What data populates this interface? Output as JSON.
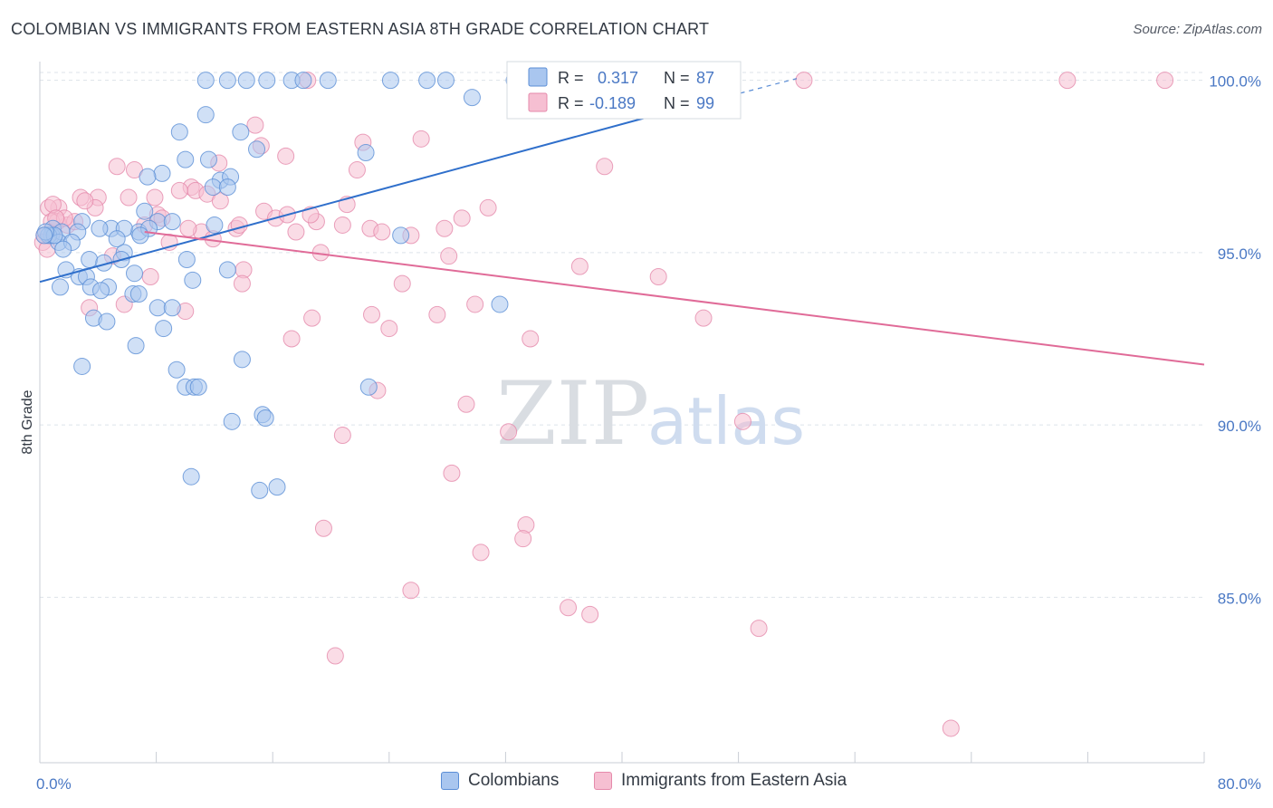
{
  "header": {
    "title": "COLOMBIAN VS IMMIGRANTS FROM EASTERN ASIA 8TH GRADE CORRELATION CHART",
    "source": "Source: ZipAtlas.com"
  },
  "watermark": {
    "zip": "ZIP",
    "atlas": "atlas"
  },
  "colors": {
    "blue_fill": "#a9c6ef",
    "blue_stroke": "#5b8ed6",
    "blue_line": "#2f6fcb",
    "pink_fill": "#f6bfd2",
    "pink_stroke": "#e58aab",
    "pink_line": "#e06b98",
    "grid": "#dde3ea",
    "tick_text": "#4a78c4"
  },
  "legend": {
    "r_label": "R =",
    "n_label": "N =",
    "entries": [
      {
        "r": "0.317",
        "n": "87"
      },
      {
        "r": "-0.189",
        "n": "99"
      }
    ]
  },
  "bottom_legend": [
    "Colombians",
    "Immigrants from Eastern Asia"
  ],
  "chart_data": {
    "type": "scatter",
    "title": "COLOMBIAN VS IMMIGRANTS FROM EASTERN ASIA 8TH GRADE CORRELATION CHART",
    "xlabel": "",
    "ylabel": "8th Grade",
    "xlim": [
      0,
      80
    ],
    "ylim": [
      80.2,
      100.7
    ],
    "x_tick_labels": [
      "0.0%",
      "80.0%"
    ],
    "y_ticks": [
      85,
      90,
      95,
      100
    ],
    "y_tick_labels": [
      "85.0%",
      "90.0%",
      "95.0%",
      "100.0%"
    ],
    "grid": "horizontal dashed",
    "legend_placement": "top-center",
    "series": [
      {
        "name": "Colombians",
        "r": 0.317,
        "n": 87,
        "trend": {
          "x1": 0,
          "y1": 94.15,
          "x2": 41.5,
          "y2": 98.9,
          "dashed_to_x": 52,
          "dashed_to_y": 100.05
        },
        "points": [
          [
            11.4,
            100
          ],
          [
            12.9,
            100
          ],
          [
            14.2,
            100
          ],
          [
            15.6,
            100
          ],
          [
            17.3,
            100
          ],
          [
            18.1,
            100
          ],
          [
            19.8,
            100
          ],
          [
            24.1,
            100
          ],
          [
            26.6,
            100
          ],
          [
            27.9,
            100
          ],
          [
            29.7,
            99.5
          ],
          [
            32.6,
            100
          ],
          [
            33.5,
            100
          ],
          [
            11.4,
            99
          ],
          [
            9.6,
            98.5
          ],
          [
            13.8,
            98.5
          ],
          [
            14.9,
            98
          ],
          [
            22.4,
            97.9
          ],
          [
            10,
            97.7
          ],
          [
            11.6,
            97.7
          ],
          [
            8.4,
            97.3
          ],
          [
            7.4,
            97.2
          ],
          [
            12.4,
            97.1
          ],
          [
            13.1,
            97.2
          ],
          [
            11.9,
            96.9
          ],
          [
            12.9,
            96.9
          ],
          [
            7.2,
            96.2
          ],
          [
            8.1,
            95.9
          ],
          [
            9.1,
            95.9
          ],
          [
            12,
            95.8
          ],
          [
            6.8,
            95.6
          ],
          [
            7.5,
            95.7
          ],
          [
            4.9,
            95.7
          ],
          [
            5.8,
            95.7
          ],
          [
            2.9,
            95.9
          ],
          [
            0.9,
            95.7
          ],
          [
            0.8,
            95.5
          ],
          [
            1.5,
            95.6
          ],
          [
            2.6,
            95.6
          ],
          [
            4.1,
            95.7
          ],
          [
            0.6,
            95.5
          ],
          [
            1.3,
            95.3
          ],
          [
            6.9,
            95.5
          ],
          [
            5.3,
            95.4
          ],
          [
            2.2,
            95.3
          ],
          [
            1.6,
            95.1
          ],
          [
            5.8,
            95
          ],
          [
            3.4,
            94.8
          ],
          [
            4.4,
            94.7
          ],
          [
            5.6,
            94.8
          ],
          [
            10.1,
            94.8
          ],
          [
            1.8,
            94.5
          ],
          [
            2.7,
            94.3
          ],
          [
            3.2,
            94.3
          ],
          [
            6.5,
            94.4
          ],
          [
            12.9,
            94.5
          ],
          [
            10.5,
            94.2
          ],
          [
            1.4,
            94
          ],
          [
            3.5,
            94
          ],
          [
            4.7,
            94
          ],
          [
            4.2,
            93.9
          ],
          [
            6.4,
            93.8
          ],
          [
            6.8,
            93.8
          ],
          [
            8.1,
            93.4
          ],
          [
            9.1,
            93.4
          ],
          [
            3.7,
            93.1
          ],
          [
            4.6,
            93
          ],
          [
            8.5,
            92.8
          ],
          [
            6.6,
            92.3
          ],
          [
            13.9,
            91.9
          ],
          [
            2.9,
            91.7
          ],
          [
            9.4,
            91.6
          ],
          [
            10,
            91.1
          ],
          [
            10.6,
            91.1
          ],
          [
            10.9,
            91.1
          ],
          [
            22.6,
            91.1
          ],
          [
            15.3,
            90.3
          ],
          [
            15.5,
            90.2
          ],
          [
            13.2,
            90.1
          ],
          [
            10.4,
            88.5
          ],
          [
            15.1,
            88.1
          ],
          [
            16.3,
            88.2
          ],
          [
            31.6,
            93.5
          ],
          [
            24.8,
            95.5
          ],
          [
            1,
            95.5
          ],
          [
            0.4,
            95.6
          ],
          [
            0.3,
            95.5
          ]
        ]
      },
      {
        "name": "Immigrants from Eastern Asia",
        "r": -0.189,
        "n": 99,
        "trend": {
          "x1": 7.2,
          "y1": 95.6,
          "x2": 80,
          "y2": 91.75
        },
        "points": [
          [
            18.4,
            100
          ],
          [
            37.8,
            100
          ],
          [
            43.2,
            100
          ],
          [
            52.5,
            100
          ],
          [
            70.6,
            100
          ],
          [
            77.3,
            100
          ],
          [
            14.8,
            98.7
          ],
          [
            26.2,
            98.3
          ],
          [
            22.2,
            98.2
          ],
          [
            15.2,
            98.1
          ],
          [
            16.9,
            97.8
          ],
          [
            12.3,
            97.6
          ],
          [
            5.3,
            97.5
          ],
          [
            6.5,
            97.4
          ],
          [
            38.8,
            97.5
          ],
          [
            21.8,
            97.4
          ],
          [
            10.4,
            96.9
          ],
          [
            10.7,
            96.8
          ],
          [
            9.6,
            96.8
          ],
          [
            11.5,
            96.7
          ],
          [
            12.4,
            96.5
          ],
          [
            7.9,
            96.6
          ],
          [
            6.1,
            96.6
          ],
          [
            4,
            96.6
          ],
          [
            2.8,
            96.6
          ],
          [
            3.8,
            96.3
          ],
          [
            1.3,
            96.3
          ],
          [
            0.6,
            96.3
          ],
          [
            21.1,
            96.4
          ],
          [
            15.4,
            96.2
          ],
          [
            8.1,
            96.1
          ],
          [
            8.4,
            96
          ],
          [
            16.2,
            96
          ],
          [
            17,
            96.1
          ],
          [
            19,
            95.9
          ],
          [
            20.8,
            95.8
          ],
          [
            29,
            96
          ],
          [
            30.8,
            96.3
          ],
          [
            22.7,
            95.7
          ],
          [
            23.5,
            95.6
          ],
          [
            27.8,
            95.7
          ],
          [
            17.6,
            95.6
          ],
          [
            13.5,
            95.7
          ],
          [
            11.1,
            95.6
          ],
          [
            10.2,
            95.7
          ],
          [
            11.9,
            95.4
          ],
          [
            7.2,
            95.8
          ],
          [
            8.9,
            95.3
          ],
          [
            1.9,
            95.8
          ],
          [
            0.9,
            95.6
          ],
          [
            0.3,
            95.5
          ],
          [
            0.2,
            95.3
          ],
          [
            0.5,
            95.1
          ],
          [
            1.2,
            95.9
          ],
          [
            19.3,
            95
          ],
          [
            25.5,
            95.5
          ],
          [
            28.1,
            94.9
          ],
          [
            37.1,
            94.6
          ],
          [
            42.5,
            94.3
          ],
          [
            14,
            94.5
          ],
          [
            7.6,
            94.3
          ],
          [
            24.9,
            94.1
          ],
          [
            13.9,
            94.1
          ],
          [
            5.8,
            93.5
          ],
          [
            3.4,
            93.4
          ],
          [
            10,
            93.3
          ],
          [
            29.9,
            93.5
          ],
          [
            27.3,
            93.2
          ],
          [
            22.8,
            93.2
          ],
          [
            18.7,
            93.1
          ],
          [
            45.6,
            93.1
          ],
          [
            24,
            92.8
          ],
          [
            17.3,
            92.5
          ],
          [
            33.7,
            92.5
          ],
          [
            23.2,
            91
          ],
          [
            29.3,
            90.6
          ],
          [
            48.3,
            90.1
          ],
          [
            32.2,
            89.8
          ],
          [
            20.8,
            89.7
          ],
          [
            28.3,
            88.6
          ],
          [
            33.4,
            87.1
          ],
          [
            19.5,
            87
          ],
          [
            33.2,
            86.7
          ],
          [
            30.3,
            86.3
          ],
          [
            25.5,
            85.2
          ],
          [
            36.3,
            84.7
          ],
          [
            37.8,
            84.5
          ],
          [
            49.4,
            84.1
          ],
          [
            20.3,
            83.3
          ],
          [
            62.6,
            81.2
          ],
          [
            0.8,
            95.9
          ],
          [
            2.4,
            95.9
          ],
          [
            1.7,
            96
          ],
          [
            0.9,
            96.4
          ],
          [
            5,
            94.9
          ],
          [
            3.1,
            96.5
          ],
          [
            18.6,
            96.1
          ],
          [
            13.7,
            95.8
          ],
          [
            1.1,
            96
          ]
        ]
      }
    ]
  }
}
